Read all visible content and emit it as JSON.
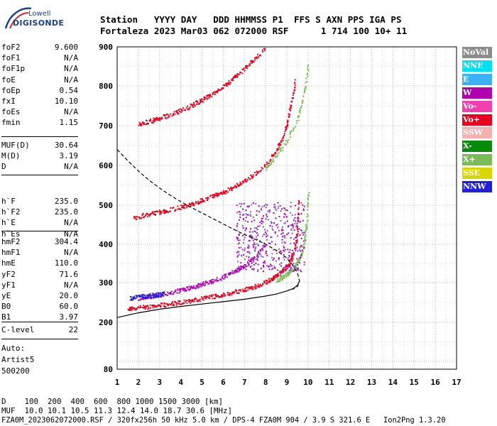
{
  "logo": {
    "top": "Lowell",
    "bottom": "DIGISONDE"
  },
  "header": {
    "line1": "Station   YYYY DAY   DDD HHMMSS P1  FFS S AXN PPS IGA PS",
    "line2": "Fortaleza 2023 Mar03 062 072000 RSF      1 714 100 10+ 11"
  },
  "params": {
    "group1": [
      {
        "name": "foF2",
        "value": "9.600"
      },
      {
        "name": "foF1",
        "value": "N/A"
      },
      {
        "name": "foF1p",
        "value": "N/A"
      },
      {
        "name": "foE",
        "value": "N/A"
      },
      {
        "name": "foEp",
        "value": "0.54"
      },
      {
        "name": "fxI",
        "value": "10.10"
      },
      {
        "name": "foEs",
        "value": "N/A"
      },
      {
        "name": "fmin",
        "value": "1.15"
      }
    ],
    "group2": [
      {
        "name": "MUF(D)",
        "value": "30.64"
      },
      {
        "name": "M(D)",
        "value": "3.19"
      },
      {
        "name": "D",
        "value": "N/A"
      }
    ],
    "group3": [
      {
        "name": "h`F",
        "value": "235.0"
      },
      {
        "name": "h`F2",
        "value": "235.0"
      },
      {
        "name": "h`E",
        "value": "N/A"
      },
      {
        "name": "h`Es",
        "value": "N/A"
      }
    ],
    "group4": [
      {
        "name": "hmF2",
        "value": "304.4"
      },
      {
        "name": "hmF1",
        "value": "N/A"
      },
      {
        "name": "hmE",
        "value": "110.0"
      },
      {
        "name": "yF2",
        "value": "71.6"
      },
      {
        "name": "yF1",
        "value": "N/A"
      },
      {
        "name": "yE",
        "value": "20.0"
      },
      {
        "name": "B0",
        "value": "60.0"
      },
      {
        "name": "B1",
        "value": "3.97"
      }
    ],
    "group5": [
      {
        "name": "C-level",
        "value": "22"
      }
    ],
    "auto": {
      "label": "Auto:",
      "software": "Artist5",
      "version": "500200"
    }
  },
  "legend": [
    {
      "label": "NoVal",
      "color": "#8c8c8c"
    },
    {
      "label": "NNE",
      "color": "#00e0f0"
    },
    {
      "label": "E",
      "color": "#3ab2f5"
    },
    {
      "label": "W",
      "color": "#b000b0"
    },
    {
      "label": "Vo-",
      "color": "#f040b0"
    },
    {
      "label": "Vo+",
      "color": "#e8001c"
    },
    {
      "label": "SSW",
      "color": "#f5b0b0"
    },
    {
      "label": "X-",
      "color": "#0a8a0a"
    },
    {
      "label": "X+",
      "color": "#7dbb5a"
    },
    {
      "label": "SSE",
      "color": "#d8d800"
    },
    {
      "label": "NNW",
      "color": "#2020d8"
    }
  ],
  "footer": {
    "line1": "D    100  200  400  600  800 1000 1500 3000 [km]",
    "line2": "MUF  10.0 10.1 10.5 11.3 12.4 14.0 18.7 30.6 [MHz]",
    "line3": "FZA0M_2023062072000.RSF / 320fx256h 50 kHz 5.0 km / DPS-4 FZA0M 904 / 3.9 S 321.6 E   Ion2Png 1.3.20"
  },
  "chart_data": {
    "type": "scatter",
    "title": "",
    "xlabel": "",
    "ylabel": "",
    "xlim": [
      1,
      17
    ],
    "ylim": [
      80,
      900
    ],
    "grid": true,
    "x_ticks": [
      1,
      2,
      3,
      4,
      5,
      6,
      7,
      8,
      9,
      10,
      11,
      12,
      13,
      14,
      15,
      16,
      17
    ],
    "y_ticks": [
      80,
      200,
      300,
      400,
      500,
      600,
      700,
      800,
      900
    ],
    "series": [
      {
        "name": "Vo+",
        "color": "#e8001c",
        "x": [
          1.5,
          2,
          2.5,
          3,
          3.5,
          4,
          4.5,
          5,
          5.5,
          6,
          6.5,
          7,
          7.5,
          8,
          8.3,
          8.6,
          8.9,
          9.1,
          9.3,
          9.45,
          9.55
        ],
        "y": [
          236,
          238,
          241,
          244,
          248,
          252,
          256,
          261,
          266,
          271,
          277,
          284,
          292,
          303,
          312,
          323,
          337,
          352,
          375,
          420,
          520
        ]
      },
      {
        "name": "X+",
        "color": "#7dbb5a",
        "x": [
          8.5,
          8.8,
          9.1,
          9.4,
          9.6,
          9.8,
          9.9,
          10.0
        ],
        "y": [
          305,
          315,
          328,
          345,
          365,
          400,
          450,
          540
        ]
      },
      {
        "name": "W",
        "color": "#b000b0",
        "x": [
          2,
          2.5,
          3,
          3.5,
          4,
          4.5,
          5,
          5.5,
          6,
          6.5,
          7,
          7.5,
          8
        ],
        "y": [
          262,
          266,
          271,
          276,
          282,
          289,
          297,
          306,
          316,
          330,
          346,
          368,
          400
        ]
      },
      {
        "name": "NNW",
        "color": "#2020d8",
        "x": [
          1.6,
          2.0,
          2.4,
          2.8,
          3.2
        ],
        "y": [
          262,
          266,
          268,
          270,
          272
        ]
      },
      {
        "name": "Vo+ (2nd hop)",
        "color": "#e8001c",
        "x": [
          1.8,
          2.5,
          3,
          3.5,
          4,
          4.5,
          5,
          5.5,
          6,
          6.5,
          7,
          7.5,
          8,
          8.5,
          8.8,
          9.0,
          9.2,
          9.4
        ],
        "y": [
          470,
          478,
          484,
          490,
          497,
          505,
          514,
          524,
          535,
          548,
          563,
          582,
          606,
          640,
          670,
          710,
          760,
          820
        ]
      },
      {
        "name": "X+ (2nd hop)",
        "color": "#7dbb5a",
        "x": [
          8,
          8.5,
          9,
          9.5,
          9.8,
          10.0
        ],
        "y": [
          595,
          625,
          665,
          720,
          780,
          860
        ]
      },
      {
        "name": "Vo+ (3rd hop)",
        "color": "#e8001c",
        "x": [
          2,
          2.5,
          3,
          3.5,
          4,
          4.5,
          5,
          5.5,
          6,
          6.5,
          7,
          7.5,
          8
        ],
        "y": [
          705,
          712,
          720,
          730,
          740,
          752,
          766,
          782,
          800,
          822,
          846,
          872,
          898
        ]
      }
    ],
    "lines": [
      {
        "name": "true height profile",
        "style": "solid",
        "color": "#000000",
        "x": [
          1,
          1.5,
          2,
          3,
          4,
          5,
          6,
          7,
          8,
          8.5,
          9,
          9.3,
          9.5,
          9.6
        ],
        "y": [
          212,
          218,
          224,
          233,
          240,
          246,
          252,
          258,
          266,
          271,
          279,
          285,
          293,
          304
        ]
      },
      {
        "name": "model profile",
        "style": "dashed",
        "color": "#000000",
        "x": [
          1,
          1.5,
          2,
          2.5,
          3,
          3.5,
          4,
          4.5,
          5,
          5.5,
          6,
          6.5,
          7,
          7.5,
          8,
          8.5,
          9,
          9.3,
          9.5,
          9.6,
          9.5,
          9.3,
          9.1
        ],
        "y": [
          640,
          612,
          586,
          563,
          543,
          525,
          509,
          494,
          480,
          466,
          452,
          438,
          425,
          413,
          400,
          384,
          364,
          344,
          325,
          304,
          290,
          284,
          282
        ]
      }
    ]
  }
}
